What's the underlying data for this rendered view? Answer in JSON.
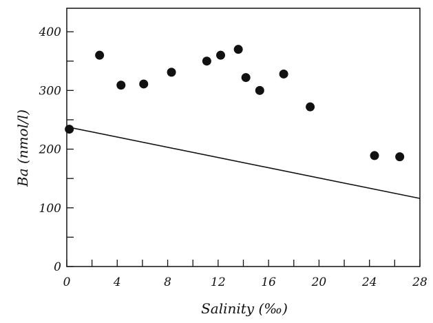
{
  "chart_data": {
    "type": "scatter",
    "title": "",
    "xlabel": "Salinity (‰)",
    "ylabel": "Ba (nmol/l)",
    "xlim": [
      0,
      28
    ],
    "ylim": [
      0,
      440
    ],
    "x_ticks": [
      0,
      4,
      8,
      12,
      16,
      20,
      24,
      28
    ],
    "x_tick_labels": [
      "0",
      "4",
      "8",
      "12",
      "16",
      "20",
      "24",
      "28"
    ],
    "y_ticks": [
      0,
      100,
      200,
      300,
      400
    ],
    "y_tick_labels": [
      "0",
      "100",
      "200",
      "300",
      "400"
    ],
    "grid": false,
    "legend": "none",
    "series": [
      {
        "kind": "points",
        "x": [
          0.2,
          2.6,
          4.3,
          6.1,
          8.3,
          11.1,
          12.2,
          13.6,
          14.2,
          15.3,
          17.2,
          19.3,
          24.4,
          26.4
        ],
        "y": [
          234,
          360,
          309,
          311,
          331,
          350,
          360,
          370,
          322,
          300,
          328,
          272,
          189,
          187
        ]
      },
      {
        "kind": "line",
        "x": [
          0,
          28
        ],
        "y": [
          238,
          116
        ]
      }
    ],
    "colors": {
      "ink": "#111111",
      "background": "#ffffff"
    }
  }
}
